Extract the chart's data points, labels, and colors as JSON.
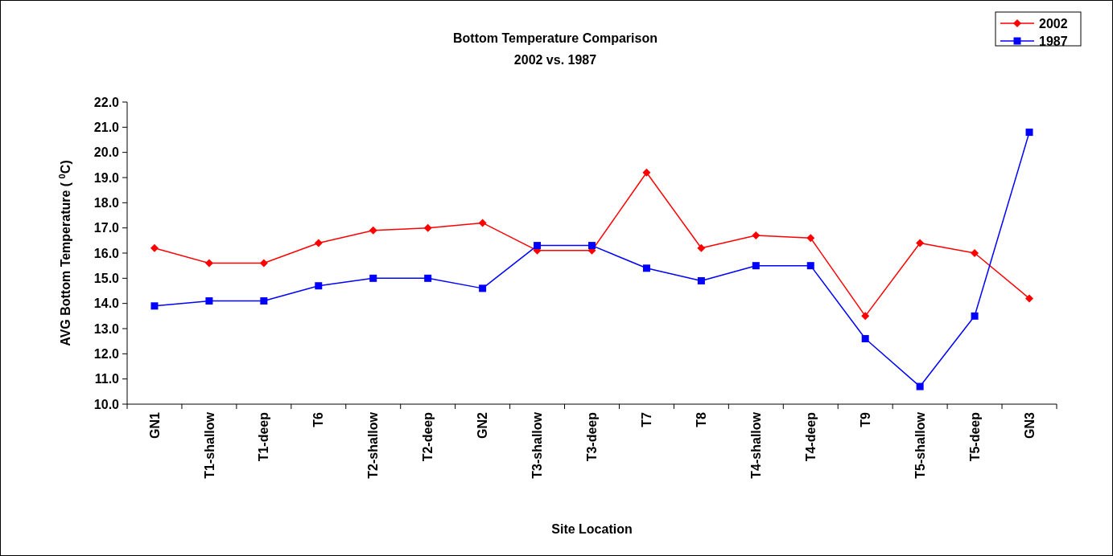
{
  "chart_data": {
    "type": "line",
    "title": "Bottom Temperature Comparison",
    "subtitle": "2002 vs. 1987",
    "xlabel": "Site Location",
    "ylabel": "AVG Bottom Temperature ( $^{0}$C)",
    "categories": [
      "GN1",
      "T1-shallow",
      "T1-deep",
      "T6",
      "T2-shallow",
      "T2-deep",
      "GN2",
      "T3-shallow",
      "T3-deep",
      "T7",
      "T8",
      "T4-shallow",
      "T4-deep",
      "T9",
      "T5-shallow",
      "T5-deep",
      "GN3"
    ],
    "series": [
      {
        "name": "2002",
        "color": "#ff0000",
        "marker": "diamond",
        "values": [
          16.2,
          15.6,
          15.6,
          16.4,
          16.9,
          17.0,
          17.2,
          16.1,
          16.1,
          19.2,
          16.2,
          16.7,
          16.6,
          13.5,
          16.4,
          16.0,
          14.2
        ]
      },
      {
        "name": "1987",
        "color": "#0000ff",
        "marker": "square",
        "values": [
          13.9,
          14.1,
          14.1,
          14.7,
          15.0,
          15.0,
          14.6,
          16.3,
          16.3,
          15.4,
          14.9,
          15.5,
          15.5,
          12.6,
          10.7,
          13.5,
          20.8
        ]
      }
    ],
    "ylim": [
      10,
      22
    ],
    "yticks": [
      {
        "value": 10,
        "label": "10.0"
      },
      {
        "value": 11,
        "label": "11.0"
      },
      {
        "value": 12,
        "label": "12.0"
      },
      {
        "value": 13,
        "label": "13.0"
      },
      {
        "value": 14,
        "label": "14.0"
      },
      {
        "value": 15,
        "label": "15.0"
      },
      {
        "value": 16,
        "label": "16.0"
      },
      {
        "value": 17,
        "label": "17.0"
      },
      {
        "value": 18,
        "label": "18.0"
      },
      {
        "value": 19,
        "label": "19.0"
      },
      {
        "value": 20,
        "label": "20.0"
      },
      {
        "value": 21,
        "label": "21.0"
      },
      {
        "value": 22,
        "label": "22.0"
      }
    ],
    "grid": false,
    "legend": "top right",
    "line_style": "solid"
  }
}
